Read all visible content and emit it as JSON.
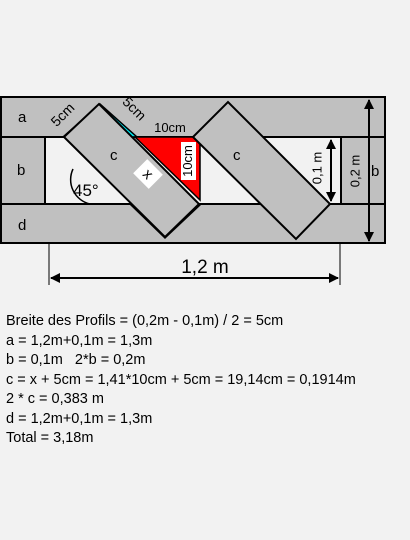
{
  "labels": {
    "a": "a",
    "b_left": "b",
    "b_right": "b",
    "d": "d",
    "c_left": "c",
    "c_right": "c",
    "x": "x",
    "five_cm_1": "5cm",
    "five_cm_2": "5cm",
    "ten_cm_top": "10cm",
    "ten_cm_side": "10cm",
    "angle": "45°",
    "inner_height": "0,1 m",
    "outer_height": "0,2 m",
    "width": "1,2 m"
  },
  "colors": {
    "profile": "#c0c0c0",
    "cyan": "#00e5ee",
    "red": "#ff0000",
    "background": "#f2f2f2"
  },
  "calculation": [
    "Breite des Profils = (0,2m - 0,1m) / 2 = 5cm",
    "a = 1,2m+0,1m = 1,3m",
    "b = 0,1m   2*b = 0,2m",
    "c = x + 5cm = 1,41*10cm + 5cm = 19,14cm = 0,1914m",
    "2 * c = 0,383 m",
    "d = 1,2m+0,1m = 1,3m",
    "Total = 3,18m"
  ]
}
